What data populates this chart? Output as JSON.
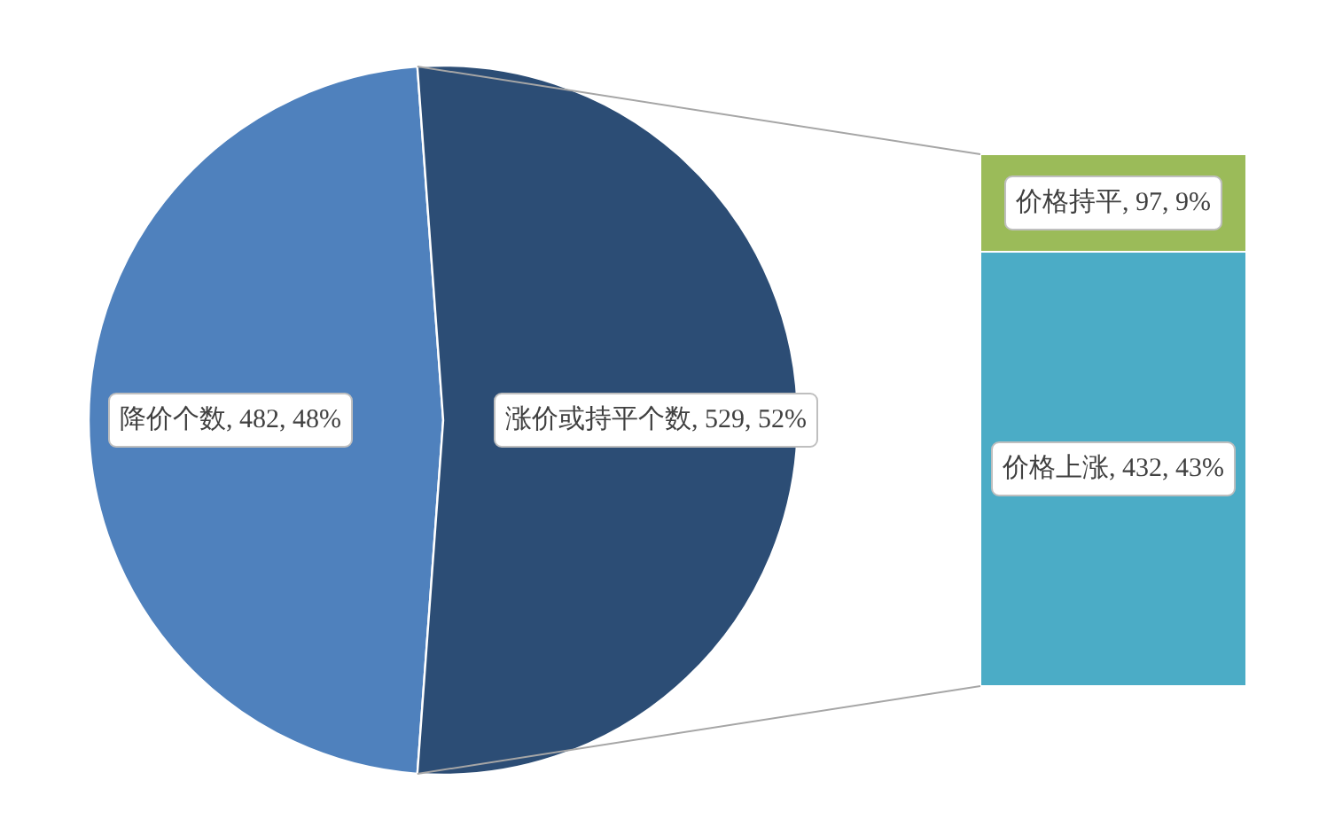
{
  "chart_data": [
    {
      "type": "pie",
      "categories": [
        "降价个数",
        "涨价或持平个数"
      ],
      "values": [
        482,
        529
      ],
      "colors": [
        "#4f81bd",
        "#2c4d75"
      ],
      "value_labels": [
        ", 482, 48%",
        ", 529, 52%"
      ]
    },
    {
      "type": "bar",
      "stacked": true,
      "categories": [
        null
      ],
      "series": [
        {
          "name": "价格上涨",
          "color": "#4bacc6",
          "values": [
            432
          ],
          "value_labels": [
            ", 432, 43%"
          ]
        },
        {
          "name": "价格持平",
          "color": "#9bbb59",
          "values": [
            97
          ],
          "value_labels": [
            ", 97, 9%"
          ]
        }
      ]
    }
  ]
}
